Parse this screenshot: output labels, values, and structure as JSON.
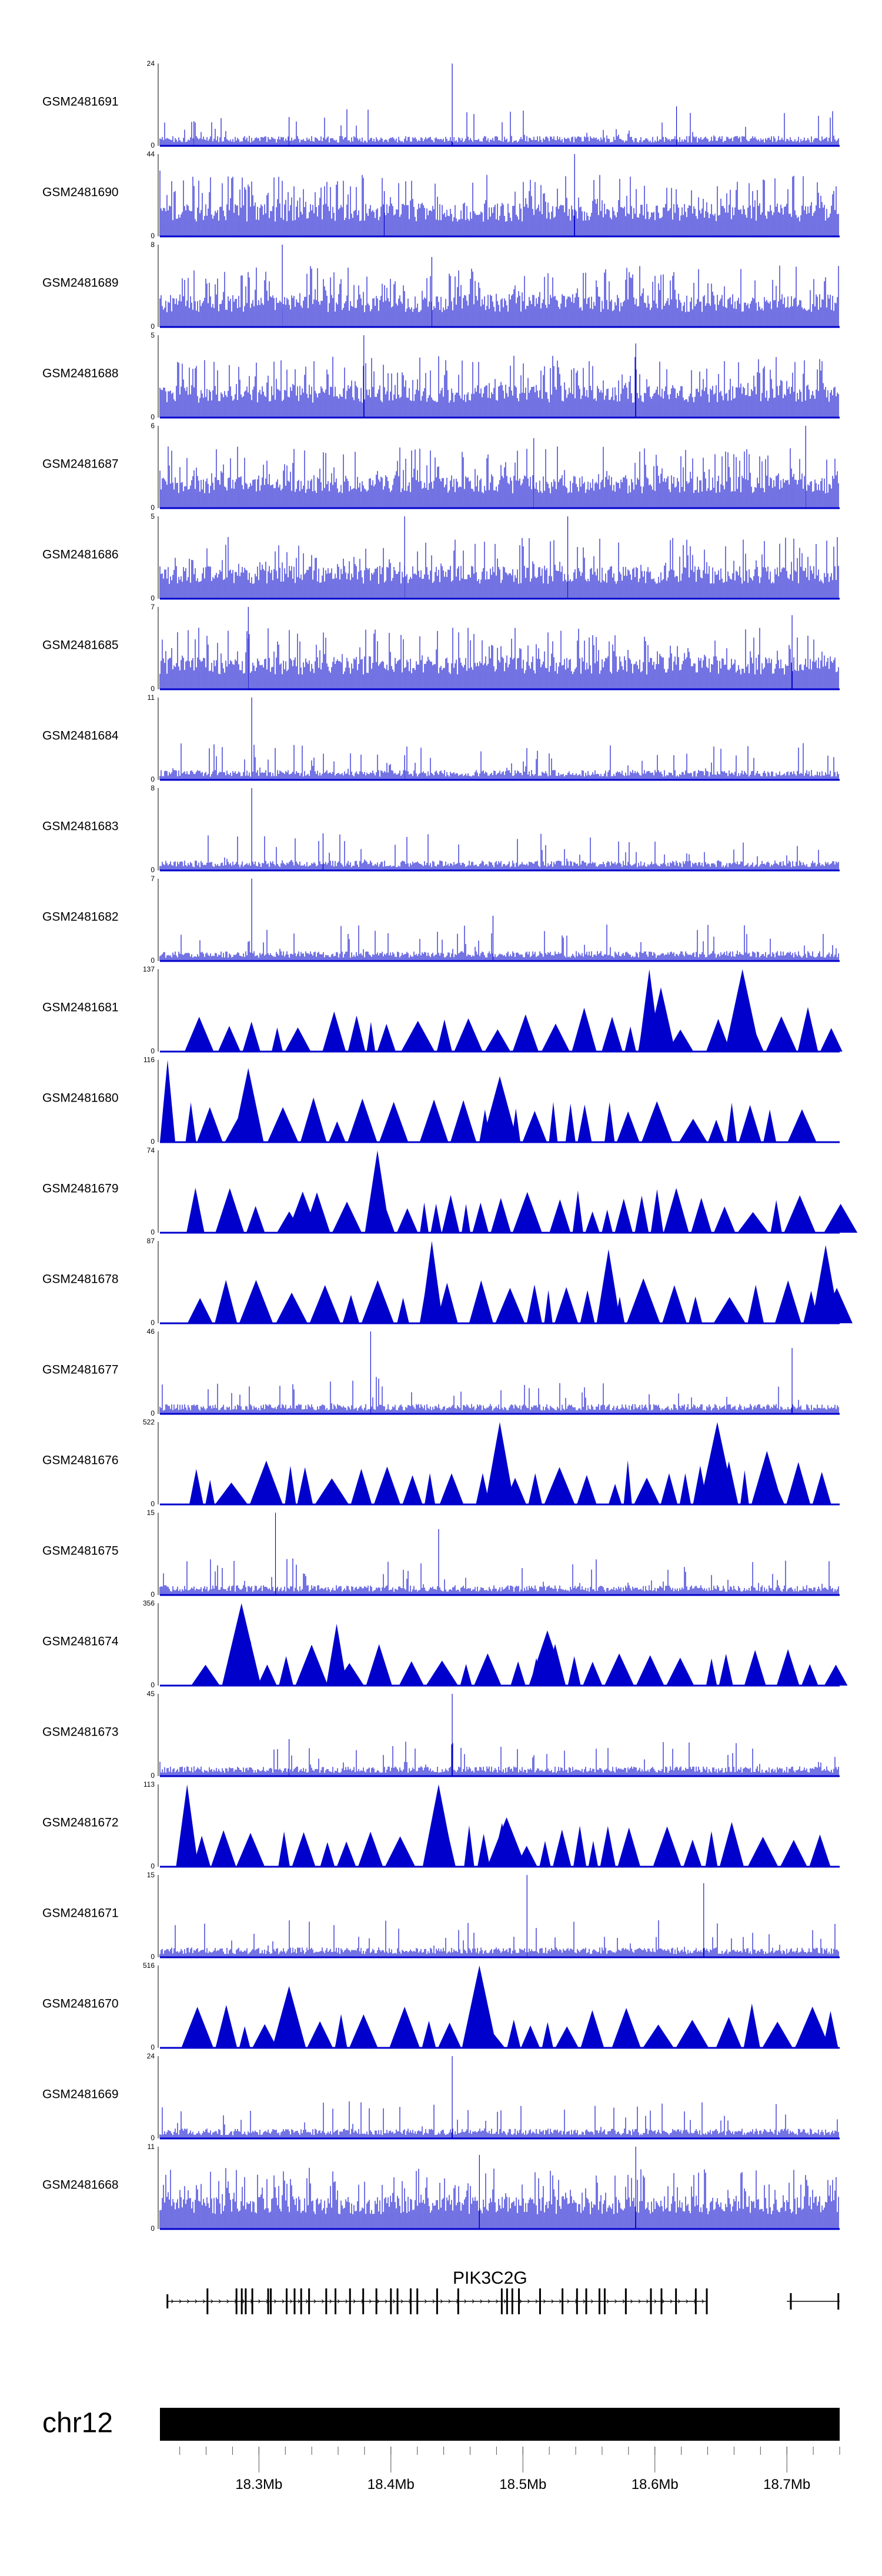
{
  "chart_data": {
    "type": "area",
    "title": "",
    "track_color": "#0000cc",
    "tracks": [
      {
        "name": "GSM2481691",
        "ymax": "24",
        "yzero": "0",
        "style": "spiky",
        "peaks": [
          [
            0.43,
            1.0
          ],
          [
            0.76,
            0.48
          ],
          [
            0.19,
            0.35
          ],
          [
            0.05,
            0.3
          ]
        ]
      },
      {
        "name": "GSM2481690",
        "ymax": "44",
        "yzero": "0",
        "style": "dense",
        "peaks": [
          [
            0.61,
            1.0
          ],
          [
            0.33,
            0.55
          ],
          [
            0.0,
            0.8
          ]
        ]
      },
      {
        "name": "GSM2481689",
        "ymax": "8",
        "yzero": "0",
        "style": "dense",
        "peaks": [
          [
            0.18,
            1.0
          ],
          [
            0.4,
            0.85
          ]
        ]
      },
      {
        "name": "GSM2481688",
        "ymax": "5",
        "yzero": "0",
        "style": "dense",
        "peaks": [
          [
            0.3,
            1.0
          ],
          [
            0.7,
            0.9
          ]
        ]
      },
      {
        "name": "GSM2481687",
        "ymax": "6",
        "yzero": "0",
        "style": "dense",
        "peaks": [
          [
            0.95,
            1.0
          ],
          [
            0.55,
            0.85
          ]
        ]
      },
      {
        "name": "GSM2481686",
        "ymax": "5",
        "yzero": "0",
        "style": "dense",
        "peaks": [
          [
            0.36,
            1.0
          ],
          [
            0.6,
            1.0
          ]
        ]
      },
      {
        "name": "GSM2481685",
        "ymax": "7",
        "yzero": "0",
        "style": "dense",
        "peaks": [
          [
            0.13,
            1.0
          ],
          [
            0.93,
            0.9
          ]
        ]
      },
      {
        "name": "GSM2481684",
        "ymax": "11",
        "yzero": "0",
        "style": "spiky",
        "peaks": [
          [
            0.135,
            1.0
          ],
          [
            0.36,
            0.3
          ]
        ]
      },
      {
        "name": "GSM2481683",
        "ymax": "8",
        "yzero": "0",
        "style": "spiky",
        "peaks": [
          [
            0.135,
            1.0
          ],
          [
            0.24,
            0.45
          ]
        ]
      },
      {
        "name": "GSM2481682",
        "ymax": "7",
        "yzero": "0",
        "style": "spiky",
        "peaks": [
          [
            0.135,
            1.0
          ],
          [
            0.49,
            0.55
          ]
        ]
      },
      {
        "name": "GSM2481681",
        "ymax": "137",
        "yzero": "0",
        "style": "triangles",
        "peaks": [
          [
            0.72,
            1.0
          ],
          [
            0.857,
            1.0
          ],
          [
            0.737,
            0.78
          ]
        ]
      },
      {
        "name": "GSM2481680",
        "ymax": "116",
        "yzero": "0",
        "style": "triangles",
        "peaks": [
          [
            0.0,
            1.0
          ],
          [
            0.13,
            0.9
          ],
          [
            0.5,
            0.8
          ]
        ]
      },
      {
        "name": "GSM2481679",
        "ymax": "74",
        "yzero": "0",
        "style": "triangles",
        "peaks": [
          [
            0.32,
            1.0
          ],
          [
            0.21,
            0.5
          ]
        ]
      },
      {
        "name": "GSM2481678",
        "ymax": "87",
        "yzero": "0",
        "style": "triangles",
        "peaks": [
          [
            0.4,
            1.0
          ],
          [
            0.98,
            0.95
          ],
          [
            0.66,
            0.9
          ]
        ]
      },
      {
        "name": "GSM2481677",
        "ymax": "46",
        "yzero": "0",
        "style": "spiky",
        "peaks": [
          [
            0.31,
            1.0
          ],
          [
            0.93,
            0.8
          ]
        ]
      },
      {
        "name": "GSM2481676",
        "ymax": "522",
        "yzero": "0",
        "style": "triangles",
        "peaks": [
          [
            0.5,
            1.0
          ],
          [
            0.82,
            1.0
          ],
          [
            0.893,
            0.65
          ]
        ]
      },
      {
        "name": "GSM2481675",
        "ymax": "15",
        "yzero": "0",
        "style": "spiky",
        "peaks": [
          [
            0.17,
            1.0
          ],
          [
            0.41,
            0.8
          ]
        ]
      },
      {
        "name": "GSM2481674",
        "ymax": "356",
        "yzero": "0",
        "style": "triangles",
        "peaks": [
          [
            0.12,
            1.0
          ],
          [
            0.26,
            0.75
          ],
          [
            0.57,
            0.67
          ]
        ]
      },
      {
        "name": "GSM2481673",
        "ymax": "45",
        "yzero": "0",
        "style": "spiky",
        "peaks": [
          [
            0.43,
            1.0
          ],
          [
            0.19,
            0.45
          ]
        ]
      },
      {
        "name": "GSM2481672",
        "ymax": "113",
        "yzero": "0",
        "style": "triangles",
        "peaks": [
          [
            0.04,
            1.0
          ],
          [
            0.41,
            1.0
          ],
          [
            0.51,
            0.6
          ]
        ]
      },
      {
        "name": "GSM2481671",
        "ymax": "15",
        "yzero": "0",
        "style": "spiky",
        "peaks": [
          [
            0.54,
            1.0
          ],
          [
            0.8,
            0.9
          ]
        ]
      },
      {
        "name": "GSM2481670",
        "ymax": "516",
        "yzero": "0",
        "style": "triangles",
        "peaks": [
          [
            0.47,
            1.0
          ],
          [
            0.19,
            0.75
          ],
          [
            0.96,
            0.5
          ]
        ]
      },
      {
        "name": "GSM2481669",
        "ymax": "24",
        "yzero": "0",
        "style": "spiky",
        "peaks": [
          [
            0.43,
            1.0
          ]
        ]
      },
      {
        "name": "GSM2481668",
        "ymax": "11",
        "yzero": "0",
        "style": "dense",
        "peaks": [
          [
            0.7,
            1.0
          ],
          [
            0.47,
            0.9
          ]
        ]
      }
    ],
    "gene": {
      "name": "PIK3C2G",
      "start_mb": 18.23,
      "end_mb": 18.64,
      "exons_mb": [
        18.261,
        18.283,
        18.287,
        18.29,
        18.295,
        18.307,
        18.309,
        18.321,
        18.327,
        18.332,
        18.338,
        18.351,
        18.358,
        18.369,
        18.379,
        18.389,
        18.4,
        18.405,
        18.415,
        18.42,
        18.435,
        18.451,
        18.484,
        18.488,
        18.492,
        18.497,
        18.513,
        18.53,
        18.541,
        18.548,
        18.558,
        18.562,
        18.578,
        18.597,
        18.605,
        18.616,
        18.631
      ],
      "extra_start_mb": 18.7,
      "extra_end_mb": 18.74,
      "extra_exons_mb": [
        18.703,
        18.739
      ]
    },
    "chromosome": {
      "label": "chr12",
      "xlim": [
        18.225,
        18.74
      ],
      "minor_ticks_step": 0.02,
      "major_ticks_mb": [
        18.3,
        18.4,
        18.5,
        18.6,
        18.7
      ],
      "tick_labels": [
        "18.3Mb",
        "18.4Mb",
        "18.5Mb",
        "18.6Mb",
        "18.7Mb"
      ]
    }
  }
}
